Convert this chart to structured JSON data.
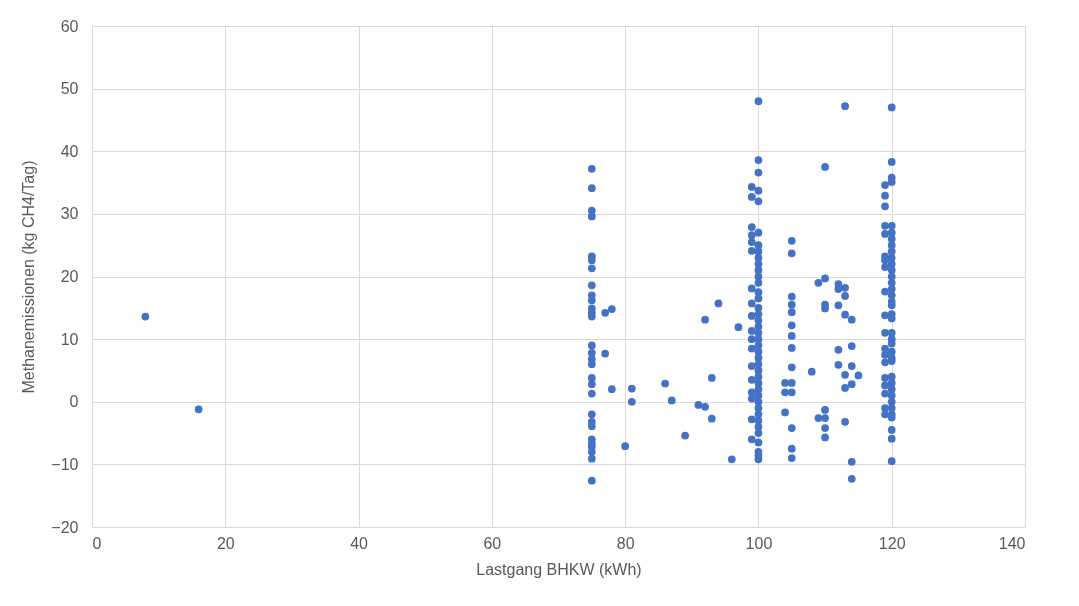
{
  "chart_data": {
    "type": "scatter",
    "xlabel": "Lastgang BHKW (kWh)",
    "ylabel": "Methanemissionen (kg CH4/Tag)",
    "xlim": [
      0,
      140
    ],
    "ylim": [
      -20,
      60
    ],
    "xticks": [
      0,
      20,
      40,
      60,
      80,
      100,
      120,
      140
    ],
    "yticks": [
      -20,
      -10,
      0,
      10,
      20,
      30,
      40,
      50,
      60
    ],
    "grid": true,
    "marker": "circle",
    "legend": false,
    "series": [
      {
        "color": "#4472c4",
        "x": [
          8,
          16,
          75,
          75,
          75,
          75,
          75,
          75,
          75,
          75,
          75,
          75,
          75,
          75,
          75,
          75,
          75,
          75,
          75,
          75,
          75,
          75,
          75,
          75,
          75,
          75,
          75,
          75,
          75,
          75,
          75,
          77,
          78,
          77,
          78,
          81,
          81,
          80,
          86,
          87,
          89,
          91,
          92,
          93,
          93,
          92,
          94,
          97,
          96,
          99,
          99,
          99,
          99,
          99,
          99,
          99,
          99,
          99,
          99,
          99,
          99,
          99,
          99,
          99,
          99,
          99,
          99,
          100,
          100,
          100,
          100,
          100,
          100,
          100,
          100,
          100,
          100,
          100,
          100,
          100,
          100,
          100,
          100,
          100,
          100,
          100,
          100,
          100,
          100,
          100,
          100,
          100,
          100,
          100,
          100,
          100,
          100,
          100,
          100,
          100,
          100,
          100,
          100,
          100,
          100,
          100,
          100,
          105,
          105,
          105,
          105,
          105,
          105,
          105,
          105,
          105,
          105,
          105,
          105,
          105,
          105,
          104,
          104,
          104,
          113,
          110,
          109,
          110,
          112,
          112,
          113,
          113,
          110,
          110,
          112,
          113,
          114,
          112,
          114,
          108,
          112,
          114,
          113,
          115,
          114,
          113,
          110,
          109,
          110,
          110,
          110,
          113,
          114,
          114,
          120,
          120,
          120,
          120,
          120,
          120,
          120,
          120,
          120,
          120,
          120,
          120,
          120,
          120,
          120,
          120,
          120,
          120,
          120,
          120,
          120,
          120,
          120,
          120,
          120,
          120,
          120,
          120,
          120,
          120,
          120,
          120,
          120,
          120,
          120,
          120,
          120,
          119,
          119,
          119,
          119,
          119,
          119,
          119,
          119,
          119,
          119,
          119,
          119,
          119,
          119,
          119,
          119,
          119,
          119,
          119
        ],
        "values": [
          13.6,
          -1.2,
          37.2,
          34.1,
          30.5,
          29.6,
          23.2,
          22.6,
          21.3,
          18.6,
          17.0,
          16.2,
          14.9,
          14.2,
          13.6,
          9.0,
          7.8,
          6.8,
          6.0,
          3.8,
          2.8,
          1.3,
          -2.0,
          -3.2,
          -3.9,
          -6.0,
          -6.7,
          -7.2,
          -8.0,
          -9.1,
          -12.6,
          14.2,
          14.8,
          7.7,
          2.0,
          2.1,
          0.0,
          -7.1,
          2.9,
          0.2,
          -5.4,
          -0.5,
          -0.8,
          3.8,
          -2.7,
          13.1,
          15.7,
          11.9,
          -9.2,
          34.3,
          32.7,
          27.9,
          26.6,
          25.5,
          24.1,
          18.1,
          15.7,
          13.7,
          11.3,
          10.0,
          8.5,
          5.7,
          3.5,
          1.5,
          0.5,
          -2.8,
          -6.0,
          48.0,
          38.6,
          36.6,
          33.7,
          32.0,
          27.0,
          25.0,
          24.0,
          23.0,
          22.0,
          21.0,
          20.0,
          19.0,
          17.5,
          16.5,
          15.0,
          14.0,
          13.0,
          12.0,
          11.0,
          10.0,
          9.0,
          8.0,
          7.0,
          6.0,
          5.0,
          4.0,
          3.0,
          2.0,
          1.0,
          0.0,
          -1.0,
          -2.0,
          -3.0,
          -4.0,
          -5.0,
          -6.5,
          -8.0,
          -8.6,
          -9.2,
          25.7,
          23.7,
          16.8,
          15.5,
          14.3,
          12.2,
          10.5,
          8.6,
          5.5,
          3.0,
          1.5,
          -4.2,
          -7.5,
          -9.0,
          3.0,
          1.5,
          -1.7,
          47.2,
          37.5,
          19.0,
          19.7,
          18.8,
          18.0,
          18.2,
          16.9,
          15.5,
          14.9,
          15.4,
          13.9,
          13.1,
          8.3,
          8.9,
          4.8,
          5.9,
          5.7,
          4.3,
          4.2,
          2.8,
          2.2,
          -1.3,
          -2.6,
          -2.6,
          -4.2,
          -5.7,
          -3.2,
          -9.6,
          -12.3,
          47.0,
          38.3,
          35.8,
          35.1,
          28.1,
          27.0,
          26.0,
          25.0,
          24.0,
          23.0,
          22.0,
          21.0,
          20.0,
          19.0,
          18.0,
          17.0,
          16.0,
          15.4,
          14.0,
          13.3,
          11.0,
          10.0,
          9.3,
          8.0,
          7.0,
          6.5,
          4.0,
          3.0,
          2.0,
          1.0,
          0.0,
          -1.0,
          -2.0,
          -2.5,
          -4.5,
          -5.9,
          -9.5,
          34.6,
          32.9,
          31.2,
          28.1,
          26.8,
          23.2,
          22.6,
          21.5,
          17.6,
          13.8,
          11.0,
          8.5,
          7.5,
          6.3,
          3.8,
          2.6,
          1.3,
          -1.0,
          -2.0
        ]
      }
    ]
  }
}
